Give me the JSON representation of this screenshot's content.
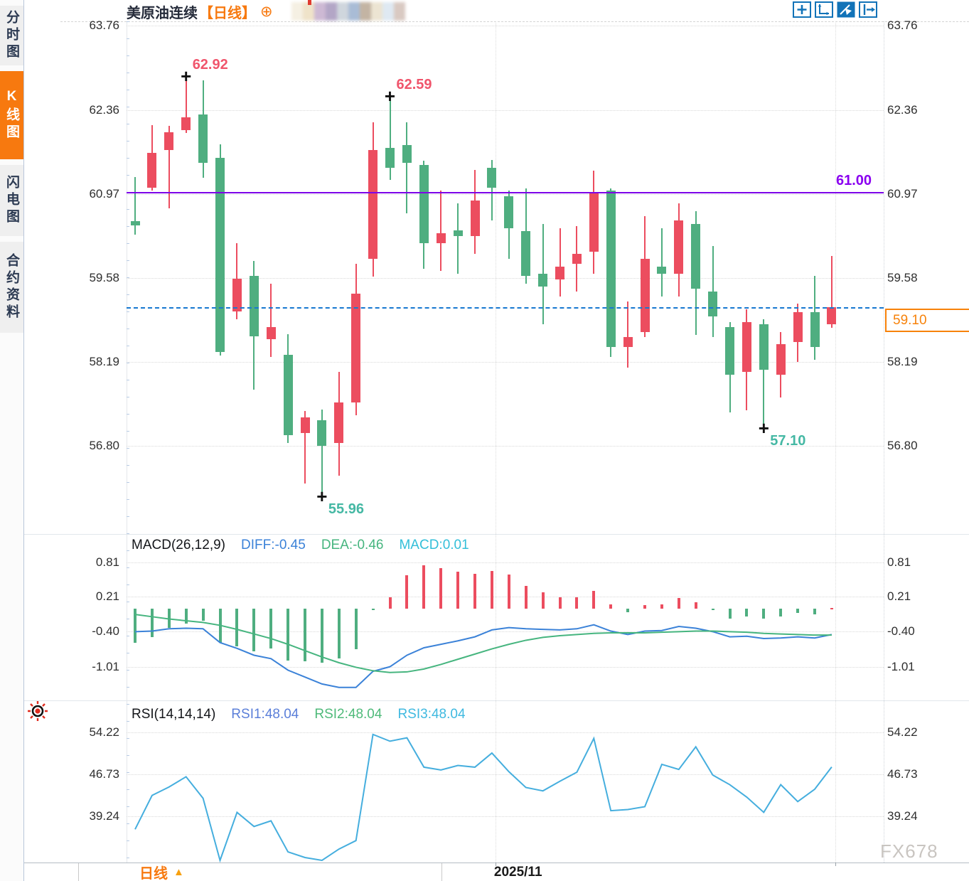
{
  "header": {
    "title": "美原油连续",
    "period_tag": "【日线】",
    "plus_icon": "⊕"
  },
  "sidebar": {
    "items": [
      {
        "label": "分时图",
        "active": false
      },
      {
        "label": "K线图",
        "active": true
      },
      {
        "label": "闪电图",
        "active": false
      },
      {
        "label": "合约资料",
        "active": false
      }
    ]
  },
  "toolbar": {
    "icons": [
      "pan-crosshair-icon",
      "axis-scale-icon",
      "playback-icon",
      "go-to-latest-icon"
    ]
  },
  "bottom_bar": {
    "period_label": "日线",
    "period_arrow": "▲",
    "date_label": "2025/11"
  },
  "watermark": "FX678",
  "colors": {
    "up": "#ec4d5f",
    "down": "#4fae80",
    "accent_orange": "#f7790f",
    "purple_line": "#7d05e8",
    "last_price_blue": "#1778d0",
    "diff_blue": "#3b82d8",
    "dea_green": "#46b57f",
    "macd_cyan": "#33bfd9",
    "rsi1_blue": "#5b7fd9",
    "rsi2_green": "#4fba7a",
    "rsi3_cyan": "#3fb9e0",
    "rsi_line": "#45aede",
    "marker_pink": "#f0556c",
    "marker_teal": "#45b8a4"
  },
  "chart_data": {
    "type": "candlestick",
    "title": "美原油连续",
    "interval": "日线",
    "legend_position": "none",
    "grid": true,
    "y_axis_ticks": [
      63.76,
      62.36,
      60.97,
      59.58,
      58.19,
      56.8
    ],
    "ylim": [
      55.3,
      63.9
    ],
    "candles_ohlc": [
      [
        60.52,
        61.25,
        60.3,
        60.45
      ],
      [
        61.08,
        62.11,
        61.03,
        61.65
      ],
      [
        61.7,
        62.1,
        60.73,
        61.99
      ],
      [
        62.03,
        62.92,
        61.98,
        62.24
      ],
      [
        62.29,
        62.86,
        61.24,
        61.49
      ],
      [
        61.57,
        61.8,
        58.3,
        58.35
      ],
      [
        59.03,
        60.16,
        58.9,
        59.57
      ],
      [
        59.61,
        59.86,
        57.73,
        58.61
      ],
      [
        58.57,
        59.49,
        58.27,
        58.77
      ],
      [
        58.31,
        58.65,
        56.85,
        56.98
      ],
      [
        57.01,
        57.38,
        56.18,
        57.27
      ],
      [
        57.22,
        57.4,
        55.96,
        56.8
      ],
      [
        56.85,
        58.02,
        56.3,
        57.52
      ],
      [
        57.52,
        59.82,
        57.31,
        59.32
      ],
      [
        59.9,
        62.16,
        59.6,
        61.7
      ],
      [
        61.74,
        62.59,
        61.2,
        61.41
      ],
      [
        61.78,
        62.16,
        60.65,
        61.49
      ],
      [
        61.45,
        61.52,
        59.73,
        60.16
      ],
      [
        60.16,
        61.03,
        59.7,
        60.32
      ],
      [
        60.37,
        60.82,
        59.65,
        60.28
      ],
      [
        60.28,
        61.37,
        59.98,
        60.86
      ],
      [
        61.41,
        61.54,
        60.53,
        61.08
      ],
      [
        60.94,
        61.03,
        59.9,
        60.4
      ],
      [
        60.36,
        61.07,
        59.48,
        59.61
      ],
      [
        59.65,
        60.48,
        58.81,
        59.44
      ],
      [
        59.56,
        60.4,
        59.27,
        59.77
      ],
      [
        59.82,
        60.44,
        59.36,
        59.98
      ],
      [
        60.02,
        61.36,
        59.65,
        60.99
      ],
      [
        61.03,
        61.07,
        58.27,
        58.44
      ],
      [
        58.44,
        59.19,
        58.1,
        58.6
      ],
      [
        58.69,
        60.61,
        58.6,
        59.9
      ],
      [
        59.77,
        60.4,
        59.27,
        59.65
      ],
      [
        59.65,
        60.82,
        59.27,
        60.53
      ],
      [
        60.48,
        60.69,
        58.64,
        59.4
      ],
      [
        59.36,
        60.11,
        58.6,
        58.94
      ],
      [
        58.77,
        58.85,
        57.35,
        57.98
      ],
      [
        58.02,
        59.06,
        57.39,
        58.85
      ],
      [
        58.81,
        58.9,
        57.1,
        58.06
      ],
      [
        57.98,
        58.69,
        57.6,
        58.48
      ],
      [
        58.52,
        59.15,
        58.19,
        59.02
      ],
      [
        59.02,
        59.61,
        58.23,
        58.44
      ],
      [
        58.81,
        59.95,
        58.75,
        59.1
      ]
    ],
    "markers": [
      {
        "index": 3,
        "type": "high",
        "label": "62.92",
        "color": "#f0556c"
      },
      {
        "index": 15,
        "type": "high",
        "label": "62.59",
        "color": "#f0556c"
      },
      {
        "index": 11,
        "type": "low",
        "label": "55.96",
        "color": "#45b8a4"
      },
      {
        "index": 37,
        "type": "low",
        "label": "57.10",
        "color": "#45b8a4"
      }
    ],
    "horizontal_line": {
      "value": 61.0,
      "label": "61.00"
    },
    "last_price_line": {
      "value": 59.1,
      "label": "59.10"
    },
    "x_ticks": [
      {
        "index": 21,
        "label": "2025/11"
      },
      {
        "index": 41,
        "label": ""
      }
    ],
    "macd": {
      "title": "MACD(26,12,9)",
      "diff_text": "DIFF:-0.45",
      "dea_text": "DEA:-0.46",
      "macd_text": "MACD:0.01",
      "y_axis_ticks": [
        0.81,
        0.21,
        -0.4,
        -1.01
      ],
      "histogram": [
        -0.59,
        -0.5,
        -0.33,
        -0.26,
        -0.21,
        -0.59,
        -0.66,
        -0.74,
        -0.69,
        -0.9,
        -0.91,
        -0.94,
        -0.86,
        -0.7,
        -0.02,
        0.2,
        0.58,
        0.75,
        0.7,
        0.64,
        0.6,
        0.66,
        0.59,
        0.4,
        0.28,
        0.2,
        0.2,
        0.31,
        0.07,
        -0.06,
        0.06,
        0.07,
        0.18,
        0.11,
        -0.02,
        -0.17,
        -0.14,
        -0.17,
        -0.14,
        -0.08,
        -0.1,
        0.01
      ],
      "diff": [
        -0.4,
        -0.39,
        -0.35,
        -0.34,
        -0.35,
        -0.59,
        -0.69,
        -0.81,
        -0.87,
        -1.07,
        -1.19,
        -1.31,
        -1.37,
        -1.37,
        -1.09,
        -1.01,
        -0.81,
        -0.68,
        -0.62,
        -0.56,
        -0.49,
        -0.37,
        -0.33,
        -0.35,
        -0.36,
        -0.37,
        -0.35,
        -0.28,
        -0.39,
        -0.45,
        -0.39,
        -0.38,
        -0.31,
        -0.34,
        -0.4,
        -0.49,
        -0.48,
        -0.52,
        -0.51,
        -0.49,
        -0.51,
        -0.45
      ],
      "dea": [
        -0.1,
        -0.14,
        -0.18,
        -0.21,
        -0.24,
        -0.29,
        -0.36,
        -0.44,
        -0.52,
        -0.62,
        -0.73,
        -0.84,
        -0.94,
        -1.02,
        -1.08,
        -1.11,
        -1.1,
        -1.05,
        -0.97,
        -0.88,
        -0.79,
        -0.7,
        -0.62,
        -0.55,
        -0.5,
        -0.47,
        -0.45,
        -0.43,
        -0.42,
        -0.42,
        -0.42,
        -0.41,
        -0.4,
        -0.39,
        -0.39,
        -0.4,
        -0.41,
        -0.43,
        -0.44,
        -0.45,
        -0.46,
        -0.46
      ]
    },
    "rsi": {
      "title": "RSI(14,14,14)",
      "rsi1_text": "RSI1:48.04",
      "rsi2_text": "RSI2:48.04",
      "rsi3_text": "RSI3:48.04",
      "y_axis_ticks": [
        54.22,
        46.73,
        39.24
      ],
      "values": [
        37.0,
        43.0,
        44.5,
        46.3,
        42.5,
        31.5,
        40.0,
        37.5,
        38.5,
        33.0,
        32.0,
        31.5,
        33.5,
        35.0,
        53.8,
        52.6,
        53.2,
        48.0,
        47.5,
        48.3,
        48.0,
        50.5,
        47.2,
        44.4,
        43.8,
        45.5,
        47.1,
        53.1,
        40.3,
        40.5,
        41.0,
        48.5,
        47.6,
        51.6,
        46.6,
        44.9,
        42.7,
        40.0,
        44.9,
        41.9,
        44.1,
        48.04
      ]
    }
  }
}
